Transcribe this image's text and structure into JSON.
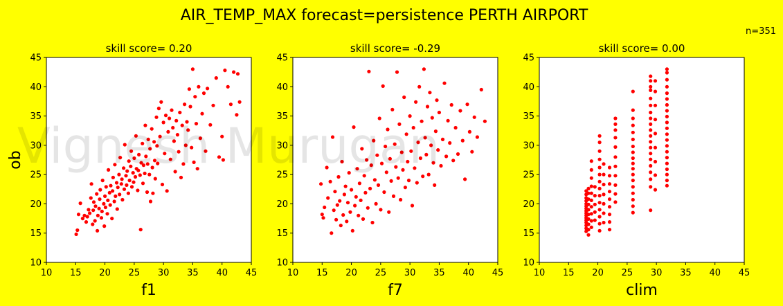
{
  "figure": {
    "title": "AIR_TEMP_MAX  forecast=persistence   PERTH AIRPORT",
    "count_label": "n=351",
    "watermark": "Vignesh Murugan",
    "background": "#ffff00",
    "marker_color": "#ff0000"
  },
  "chart_data": [
    {
      "type": "scatter",
      "title": "skill score=  0.20",
      "xlabel": "f1",
      "ylabel": "ob",
      "xlim": [
        10,
        45
      ],
      "ylim": [
        10,
        45
      ],
      "xticks": [
        10,
        15,
        20,
        25,
        30,
        35,
        40,
        45
      ],
      "yticks": [
        10,
        15,
        20,
        25,
        30,
        35,
        40,
        45
      ],
      "points": [
        [
          15.1,
          14.8
        ],
        [
          15.3,
          15.5
        ],
        [
          15.5,
          18.2
        ],
        [
          15.8,
          20.1
        ],
        [
          16.2,
          17.5
        ],
        [
          16.5,
          18.0
        ],
        [
          16.8,
          16.9
        ],
        [
          17.0,
          17.8
        ],
        [
          17.2,
          19.0
        ],
        [
          17.4,
          18.4
        ],
        [
          17.6,
          21.0
        ],
        [
          17.7,
          23.4
        ],
        [
          17.9,
          16.5
        ],
        [
          18.0,
          18.9
        ],
        [
          18.1,
          20.3
        ],
        [
          18.3,
          17.1
        ],
        [
          18.4,
          19.6
        ],
        [
          18.6,
          21.7
        ],
        [
          18.7,
          15.4
        ],
        [
          18.8,
          18.0
        ],
        [
          19.0,
          19.2
        ],
        [
          19.1,
          20.8
        ],
        [
          19.2,
          22.4
        ],
        [
          19.4,
          17.6
        ],
        [
          19.5,
          18.7
        ],
        [
          19.6,
          24.0
        ],
        [
          19.8,
          20.0
        ],
        [
          19.9,
          16.2
        ],
        [
          20.0,
          21.3
        ],
        [
          20.1,
          19.4
        ],
        [
          20.2,
          22.9
        ],
        [
          20.4,
          18.3
        ],
        [
          20.5,
          20.6
        ],
        [
          20.6,
          25.8
        ],
        [
          20.8,
          21.9
        ],
        [
          20.9,
          19.8
        ],
        [
          21.0,
          23.1
        ],
        [
          21.2,
          17.5
        ],
        [
          21.3,
          22.2
        ],
        [
          21.4,
          24.5
        ],
        [
          21.6,
          20.4
        ],
        [
          21.7,
          26.7
        ],
        [
          21.8,
          21.3
        ],
        [
          22.0,
          23.6
        ],
        [
          22.1,
          19.1
        ],
        [
          22.2,
          22.8
        ],
        [
          22.4,
          25.0
        ],
        [
          22.5,
          21.6
        ],
        [
          22.6,
          27.9
        ],
        [
          22.8,
          23.4
        ],
        [
          22.9,
          24.2
        ],
        [
          23.0,
          20.7
        ],
        [
          23.2,
          26.1
        ],
        [
          23.3,
          22.5
        ],
        [
          23.4,
          30.1
        ],
        [
          23.6,
          24.8
        ],
        [
          23.7,
          23.2
        ],
        [
          23.8,
          25.6
        ],
        [
          24.0,
          21.8
        ],
        [
          24.1,
          27.3
        ],
        [
          24.2,
          24.0
        ],
        [
          24.4,
          26.4
        ],
        [
          24.5,
          29.0
        ],
        [
          24.6,
          22.9
        ],
        [
          24.8,
          25.3
        ],
        [
          24.9,
          23.7
        ],
        [
          25.0,
          27.8
        ],
        [
          25.2,
          24.6
        ],
        [
          25.3,
          31.6
        ],
        [
          25.4,
          26.0
        ],
        [
          25.6,
          22.3
        ],
        [
          25.7,
          25.7
        ],
        [
          25.8,
          28.4
        ],
        [
          26.0,
          24.9
        ],
        [
          26.1,
          15.6
        ],
        [
          26.2,
          27.0
        ],
        [
          26.4,
          30.3
        ],
        [
          26.5,
          23.5
        ],
        [
          26.6,
          26.6
        ],
        [
          26.8,
          25.2
        ],
        [
          26.9,
          33.4
        ],
        [
          27.0,
          28.1
        ],
        [
          27.2,
          22.0
        ],
        [
          27.3,
          26.8
        ],
        [
          27.4,
          31.0
        ],
        [
          27.6,
          25.0
        ],
        [
          27.7,
          29.4
        ],
        [
          27.8,
          20.4
        ],
        [
          28.0,
          32.8
        ],
        [
          28.1,
          26.2
        ],
        [
          28.2,
          21.8
        ],
        [
          28.4,
          30.6
        ],
        [
          28.5,
          27.4
        ],
        [
          28.6,
          24.3
        ],
        [
          28.8,
          34.8
        ],
        [
          28.9,
          29.9
        ],
        [
          29.0,
          26.9
        ],
        [
          29.2,
          36.3
        ],
        [
          29.4,
          31.5
        ],
        [
          29.6,
          37.4
        ],
        [
          29.8,
          23.3
        ],
        [
          30.0,
          33.9
        ],
        [
          30.2,
          28.6
        ],
        [
          30.4,
          35.1
        ],
        [
          30.6,
          22.2
        ],
        [
          30.8,
          32.3
        ],
        [
          31.0,
          34.6
        ],
        [
          31.2,
          27.6
        ],
        [
          31.4,
          36.0
        ],
        [
          31.6,
          33.0
        ],
        [
          31.8,
          30.7
        ],
        [
          32.0,
          25.5
        ],
        [
          32.2,
          34.2
        ],
        [
          32.4,
          31.8
        ],
        [
          32.6,
          28.9
        ],
        [
          32.8,
          35.6
        ],
        [
          33.0,
          24.5
        ],
        [
          33.2,
          33.4
        ],
        [
          33.4,
          26.8
        ],
        [
          33.6,
          37.0
        ],
        [
          33.8,
          30.0
        ],
        [
          34.0,
          34.0
        ],
        [
          34.2,
          32.6
        ],
        [
          34.4,
          39.6
        ],
        [
          34.6,
          36.6
        ],
        [
          34.8,
          29.6
        ],
        [
          35.0,
          43.0
        ],
        [
          35.2,
          27.1
        ],
        [
          35.4,
          38.3
        ],
        [
          35.6,
          33.7
        ],
        [
          35.8,
          26.0
        ],
        [
          36.0,
          40.0
        ],
        [
          36.3,
          31.2
        ],
        [
          36.6,
          35.4
        ],
        [
          36.9,
          38.9
        ],
        [
          37.2,
          29.0
        ],
        [
          37.5,
          39.7
        ],
        [
          38.0,
          33.5
        ],
        [
          38.5,
          36.8
        ],
        [
          39.0,
          41.5
        ],
        [
          39.5,
          28.0
        ],
        [
          40.0,
          31.5
        ],
        [
          40.5,
          42.8
        ],
        [
          41.0,
          40.0
        ],
        [
          41.5,
          37.0
        ],
        [
          42.0,
          42.5
        ],
        [
          42.5,
          35.2
        ],
        [
          43.0,
          37.4
        ],
        [
          42.7,
          42.2
        ],
        [
          40.2,
          27.5
        ]
      ]
    },
    {
      "type": "scatter",
      "title": "skill score= -0.29",
      "xlabel": "f7",
      "ylabel": "",
      "xlim": [
        10,
        45
      ],
      "ylim": [
        10,
        45
      ],
      "xticks": [
        10,
        15,
        20,
        25,
        30,
        35,
        40,
        45
      ],
      "yticks": [
        10,
        15,
        20,
        25,
        30,
        35,
        40,
        45
      ],
      "points": [
        [
          14.8,
          23.4
        ],
        [
          15.0,
          18.2
        ],
        [
          15.2,
          17.6
        ],
        [
          15.4,
          19.4
        ],
        [
          15.8,
          26.2
        ],
        [
          16.0,
          21.0
        ],
        [
          16.4,
          23.8
        ],
        [
          16.6,
          15.0
        ],
        [
          16.8,
          31.4
        ],
        [
          17.0,
          18.9
        ],
        [
          17.2,
          22.1
        ],
        [
          17.4,
          17.3
        ],
        [
          17.6,
          19.8
        ],
        [
          17.8,
          24.6
        ],
        [
          18.0,
          20.5
        ],
        [
          18.2,
          16.3
        ],
        [
          18.4,
          27.2
        ],
        [
          18.6,
          18.1
        ],
        [
          18.8,
          21.6
        ],
        [
          19.0,
          23.0
        ],
        [
          19.2,
          17.0
        ],
        [
          19.4,
          20.2
        ],
        [
          19.6,
          25.3
        ],
        [
          19.8,
          18.6
        ],
        [
          20.0,
          22.4
        ],
        [
          20.2,
          15.4
        ],
        [
          20.4,
          33.1
        ],
        [
          20.6,
          19.7
        ],
        [
          20.8,
          21.2
        ],
        [
          21.0,
          26.0
        ],
        [
          21.2,
          18.0
        ],
        [
          21.4,
          23.5
        ],
        [
          21.6,
          20.6
        ],
        [
          21.8,
          29.4
        ],
        [
          22.0,
          17.4
        ],
        [
          22.2,
          24.8
        ],
        [
          22.4,
          21.9
        ],
        [
          22.6,
          27.5
        ],
        [
          22.8,
          19.3
        ],
        [
          23.0,
          42.6
        ],
        [
          23.2,
          22.6
        ],
        [
          23.4,
          26.6
        ],
        [
          23.6,
          16.8
        ],
        [
          23.8,
          30.8
        ],
        [
          24.0,
          24.1
        ],
        [
          24.2,
          20.0
        ],
        [
          24.4,
          28.3
        ],
        [
          24.6,
          23.2
        ],
        [
          24.8,
          34.6
        ],
        [
          25.0,
          19.0
        ],
        [
          25.2,
          26.9
        ],
        [
          25.4,
          40.1
        ],
        [
          25.6,
          22.0
        ],
        [
          25.8,
          29.8
        ],
        [
          26.0,
          25.4
        ],
        [
          26.2,
          32.7
        ],
        [
          26.4,
          18.6
        ],
        [
          26.6,
          27.7
        ],
        [
          26.8,
          23.9
        ],
        [
          27.0,
          36.1
        ],
        [
          27.2,
          21.3
        ],
        [
          27.4,
          30.2
        ],
        [
          27.6,
          26.3
        ],
        [
          27.8,
          42.5
        ],
        [
          28.0,
          24.4
        ],
        [
          28.2,
          33.6
        ],
        [
          28.4,
          20.7
        ],
        [
          28.6,
          28.8
        ],
        [
          28.8,
          25.8
        ],
        [
          29.0,
          38.2
        ],
        [
          29.2,
          22.8
        ],
        [
          29.4,
          31.9
        ],
        [
          29.6,
          27.2
        ],
        [
          29.8,
          24.0
        ],
        [
          30.0,
          35.0
        ],
        [
          30.2,
          29.0
        ],
        [
          30.4,
          19.7
        ],
        [
          30.6,
          33.0
        ],
        [
          30.8,
          26.1
        ],
        [
          31.0,
          37.4
        ],
        [
          31.2,
          23.6
        ],
        [
          31.4,
          30.5
        ],
        [
          31.6,
          40.0
        ],
        [
          31.8,
          27.8
        ],
        [
          32.0,
          34.1
        ],
        [
          32.2,
          24.7
        ],
        [
          32.4,
          43.0
        ],
        [
          32.6,
          31.3
        ],
        [
          32.8,
          28.4
        ],
        [
          33.0,
          36.6
        ],
        [
          33.2,
          25.0
        ],
        [
          33.4,
          39.0
        ],
        [
          33.6,
          30.0
        ],
        [
          33.8,
          34.7
        ],
        [
          34.0,
          27.0
        ],
        [
          34.2,
          23.2
        ],
        [
          34.4,
          32.4
        ],
        [
          34.6,
          37.7
        ],
        [
          34.8,
          29.2
        ],
        [
          35.0,
          35.6
        ],
        [
          35.3,
          26.5
        ],
        [
          35.6,
          31.0
        ],
        [
          35.9,
          40.6
        ],
        [
          36.2,
          28.1
        ],
        [
          36.5,
          34.2
        ],
        [
          36.8,
          30.4
        ],
        [
          37.1,
          36.9
        ],
        [
          37.4,
          27.4
        ],
        [
          37.8,
          33.0
        ],
        [
          38.2,
          28.5
        ],
        [
          38.6,
          35.9
        ],
        [
          39.0,
          30.8
        ],
        [
          39.4,
          24.2
        ],
        [
          39.8,
          37.0
        ],
        [
          40.2,
          32.3
        ],
        [
          40.6,
          28.9
        ],
        [
          41.0,
          34.8
        ],
        [
          41.5,
          31.4
        ],
        [
          42.2,
          39.5
        ],
        [
          42.8,
          34.1
        ]
      ]
    },
    {
      "type": "scatter",
      "title": "skill score=  0.00",
      "xlabel": "clim",
      "ylabel": "",
      "xlim": [
        10,
        45
      ],
      "ylim": [
        10,
        45
      ],
      "xticks": [
        10,
        15,
        20,
        25,
        30,
        35,
        40,
        45
      ],
      "yticks": [
        10,
        15,
        20,
        25,
        30,
        35,
        40,
        45
      ],
      "columns": [
        {
          "x": 18.0,
          "ys": [
            15.3,
            15.8,
            16.3,
            16.8,
            17.2,
            17.6,
            18.0,
            18.4,
            18.8,
            19.2,
            19.6,
            20.0,
            20.5,
            21.0,
            21.6,
            22.2
          ]
        },
        {
          "x": 18.4,
          "ys": [
            14.7,
            15.6,
            16.5,
            17.4,
            18.2,
            19.0,
            19.9,
            20.8,
            21.8,
            22.6
          ]
        },
        {
          "x": 18.9,
          "ys": [
            16.0,
            17.1,
            18.3,
            19.5,
            20.6,
            21.8,
            23.0,
            24.4,
            25.8,
            27.3
          ]
        },
        {
          "x": 19.5,
          "ys": [
            17.2,
            18.6,
            19.9,
            21.4,
            22.9
          ]
        },
        {
          "x": 20.3,
          "ys": [
            15.4,
            16.6,
            17.8,
            19.0,
            20.2,
            21.4,
            22.6,
            23.8,
            25.0,
            26.2,
            27.6,
            29.0,
            30.5,
            31.6
          ]
        },
        {
          "x": 21.0,
          "ys": [
            16.8,
            18.4,
            20.0,
            21.6,
            23.3,
            25.0,
            26.8
          ]
        },
        {
          "x": 22.0,
          "ys": [
            15.6,
            16.9,
            18.2,
            19.5,
            20.8,
            22.1,
            23.4,
            24.8,
            26.2
          ]
        },
        {
          "x": 23.0,
          "ys": [
            20.3,
            21.7,
            23.2,
            24.8,
            26.4,
            28.0,
            29.7,
            31.3,
            32.6,
            33.6,
            34.6
          ]
        },
        {
          "x": 26.0,
          "ys": [
            18.5,
            19.6,
            20.7,
            21.8,
            22.9,
            24.0,
            25.0,
            26.0,
            26.9,
            27.8,
            28.8,
            29.8,
            31.0,
            32.2,
            33.4,
            34.6,
            36.0,
            39.2
          ]
        },
        {
          "x": 29.0,
          "ys": [
            18.9,
            22.9,
            24.2,
            25.4,
            26.5,
            27.6,
            28.6,
            29.6,
            30.6,
            31.6,
            32.6,
            33.6,
            34.6,
            35.6,
            36.8,
            38.0,
            39.4,
            40.0,
            41.0,
            41.8
          ]
        },
        {
          "x": 29.8,
          "ys": [
            22.4,
            24.9,
            27.2,
            29.6,
            32.0,
            34.4,
            36.8,
            39.2,
            41.0
          ]
        },
        {
          "x": 31.8,
          "ys": [
            23.1,
            24.0,
            25.0,
            25.9,
            26.9,
            27.9,
            28.9,
            29.9,
            30.9,
            31.9,
            32.9,
            33.9,
            34.9,
            35.9,
            36.9,
            37.9,
            38.9,
            40.0,
            41.2,
            42.4,
            43.0
          ]
        }
      ]
    }
  ]
}
